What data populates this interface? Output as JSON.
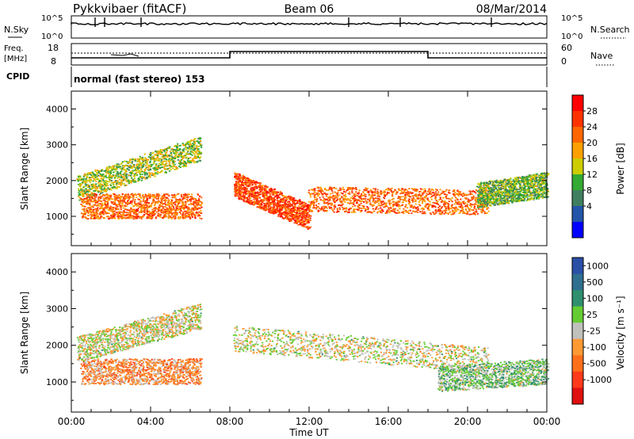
{
  "header": {
    "radar": "Pykkvibaer (fitACF)",
    "beam": "Beam 06",
    "date": "08/Mar/2014"
  },
  "panels": {
    "nsky": {
      "label_left": "N.Sky",
      "label_right": "N.Search",
      "left_ticks": [
        "10^5",
        "10^0"
      ],
      "right_ticks": [
        "10^5",
        "10^0"
      ]
    },
    "freq": {
      "label_left_top": "Freq.",
      "label_left_unit": "[MHz]",
      "label_right": "Nave",
      "left_ticks": [
        "18",
        "8"
      ],
      "right_ticks": [
        "60",
        "0"
      ]
    },
    "cpid": {
      "label": "CPID",
      "text": "normal (fast stereo) 153"
    }
  },
  "colorbars": {
    "power": {
      "label": "Power [dB]",
      "ticks": [
        "28",
        "24",
        "20",
        "16",
        "12",
        "8",
        "4"
      ],
      "colors": [
        "#ff0000",
        "#ff3300",
        "#ff6600",
        "#ffa000",
        "#cccc00",
        "#33aa33",
        "#3f7f5f",
        "#2255aa",
        "#0000ff"
      ]
    },
    "velocity": {
      "label": "Velocity [m s⁻¹]",
      "ticks": [
        "1000",
        "500",
        "100",
        "25",
        "-25",
        "-100",
        "-500",
        "-1000"
      ],
      "colors": [
        "#2a4fa6",
        "#2f6f8f",
        "#2f8f6f",
        "#66cc33",
        "#c0c0bc",
        "#ff9a33",
        "#ff6f1a",
        "#ff3a1a",
        "#e01010"
      ]
    }
  },
  "axes": {
    "ylabel": "Slant Range [km]",
    "xlabel": "Time UT",
    "x_ticks": [
      "00:00",
      "04:00",
      "08:00",
      "12:00",
      "16:00",
      "20:00",
      "00:00"
    ],
    "y_ticks": [
      "4000",
      "3000",
      "2000",
      "1000"
    ]
  },
  "chart_data": [
    {
      "type": "heatmap",
      "title": "",
      "xlabel": "Time UT",
      "ylabel": "Slant Range [km]",
      "xlim": [
        0,
        24
      ],
      "ylim": [
        180,
        4500
      ],
      "colorbar_label": "Power [dB]",
      "colorbar_range": [
        0,
        30
      ],
      "ridges": [
        {
          "t0": 0.3,
          "t1": 6.5,
          "r0": 1800,
          "r1": 2900,
          "value": 14
        },
        {
          "t0": 0.5,
          "t1": 6.5,
          "r0": 1300,
          "r1": 1300,
          "value": 22
        },
        {
          "t0": 8.2,
          "t1": 12.0,
          "r0": 1900,
          "r1": 1000,
          "value": 24
        },
        {
          "t0": 12.0,
          "t1": 21.0,
          "r0": 1500,
          "r1": 1400,
          "value": 22
        },
        {
          "t0": 20.5,
          "t1": 24.0,
          "r0": 1600,
          "r1": 1900,
          "value": 12
        }
      ]
    },
    {
      "type": "heatmap",
      "title": "",
      "xlabel": "Time UT",
      "ylabel": "Slant Range [km]",
      "xlim": [
        0,
        24
      ],
      "ylim": [
        180,
        4500
      ],
      "colorbar_label": "Velocity [m s⁻¹]",
      "colorbar_range": [
        -1000,
        1000
      ],
      "ridges": [
        {
          "t0": 0.5,
          "t1": 6.5,
          "r0": 1300,
          "r1": 1300,
          "value": -300
        },
        {
          "t0": 0.3,
          "t1": 6.5,
          "r0": 1900,
          "r1": 2800,
          "value": 0
        },
        {
          "t0": 8.2,
          "t1": 21.0,
          "r0": 2200,
          "r1": 1600,
          "value": 0
        },
        {
          "t0": 18.5,
          "t1": 24.0,
          "r0": 1100,
          "r1": 1300,
          "value": 200
        }
      ]
    }
  ]
}
